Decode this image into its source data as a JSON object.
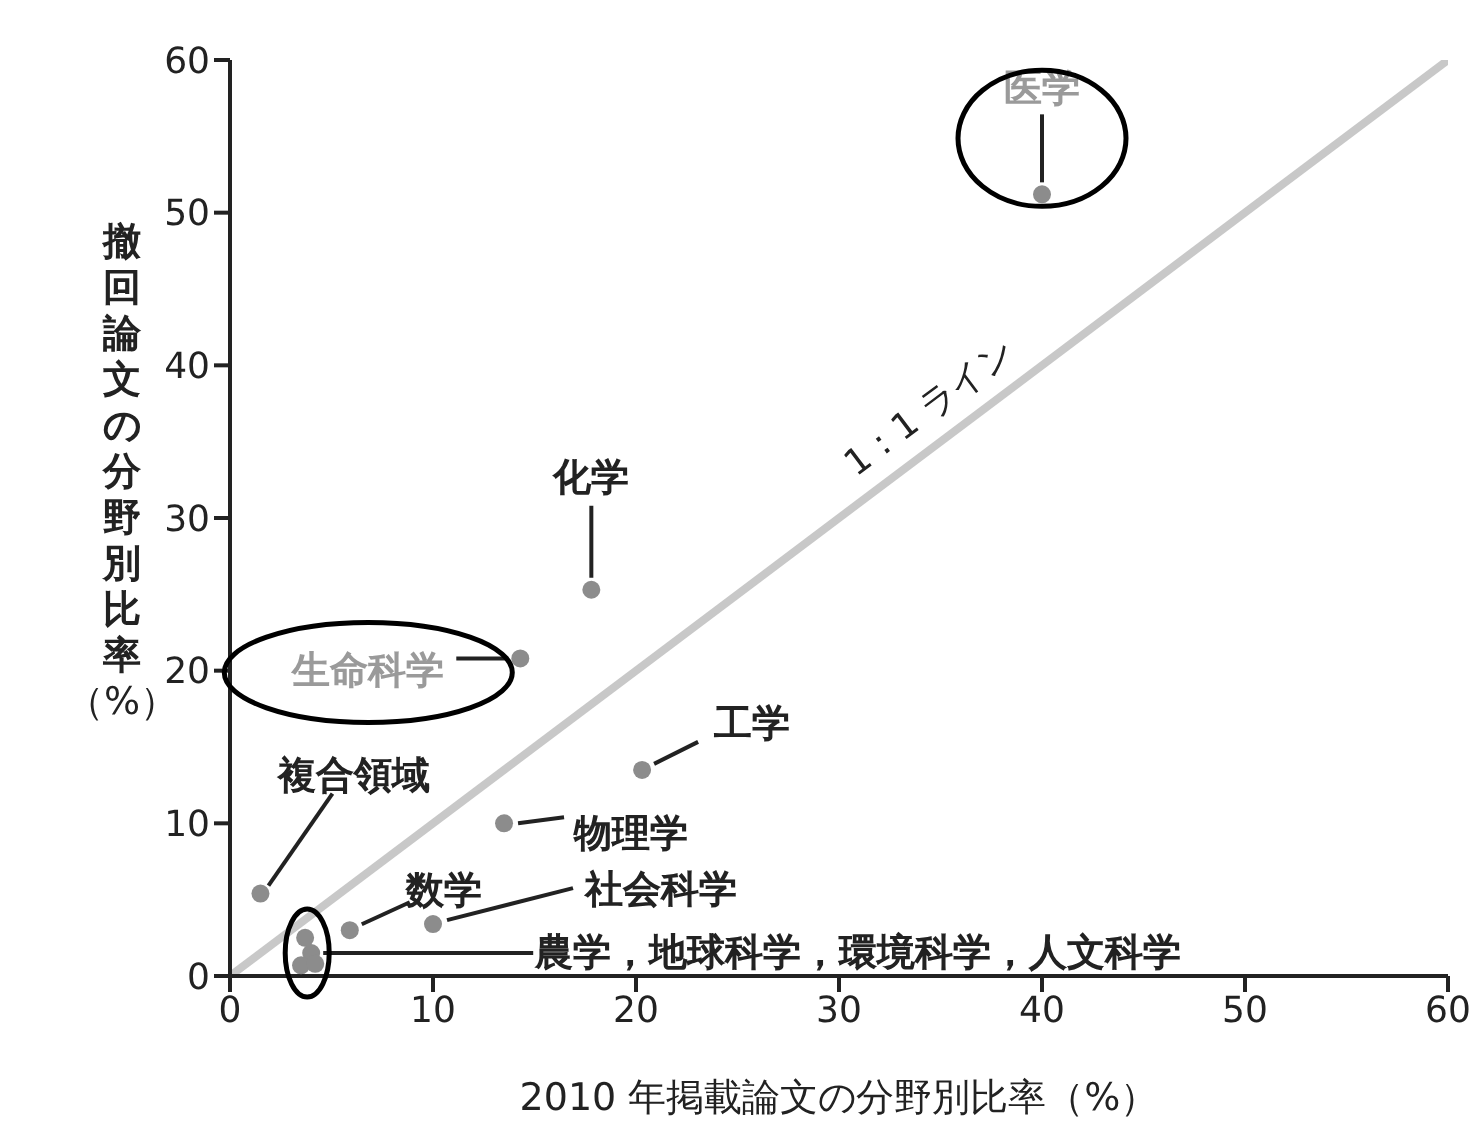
{
  "chart_data": {
    "type": "scatter",
    "xlabel": "2010 年掲載論文の分野別比率（%）",
    "ylabel": "撤回論文の分野別比率（%）",
    "xlim": [
      0,
      60
    ],
    "ylim": [
      0,
      60
    ],
    "xticks": [
      0,
      10,
      20,
      30,
      40,
      50,
      60
    ],
    "yticks": [
      0,
      10,
      20,
      30,
      40,
      50,
      60
    ],
    "grid": false,
    "legend": false,
    "series": [
      {
        "type": "line",
        "name": "1：1 ライン",
        "x": [
          0,
          60
        ],
        "values": [
          0,
          60
        ],
        "color": "#c8c8c8",
        "line_style": "solid",
        "marker": "none"
      },
      {
        "marker": "circle",
        "x": [
          40,
          17.8,
          14.3,
          20.3,
          13.5,
          1.5,
          5.9,
          10,
          3.7,
          4,
          3.5,
          4.2
        ],
        "values": [
          51.2,
          25.3,
          20.8,
          13.5,
          10,
          5.4,
          3,
          3.4,
          2.5,
          1.5,
          0.7,
          0.8
        ],
        "color": "#8c8c8c"
      }
    ],
    "annotations": [
      {
        "text": "医学",
        "x": 40,
        "y": 51.2
      },
      {
        "text": "化学",
        "x": 17.8,
        "y": 25.3
      },
      {
        "text": "生命科学",
        "x": 14.3,
        "y": 20.8
      },
      {
        "text": "工学",
        "x": 20.3,
        "y": 13.5
      },
      {
        "text": "物理学",
        "x": 13.5,
        "y": 10
      },
      {
        "text": "複合領域",
        "x": 1.5,
        "y": 5.4
      },
      {
        "text": "数学",
        "x": 5.9,
        "y": 3
      },
      {
        "text": "社会科学",
        "x": 10,
        "y": 3.4
      },
      {
        "text": "農学，地球科学，環境科学，人文科学",
        "x": 4,
        "y": 1.5
      }
    ]
  }
}
